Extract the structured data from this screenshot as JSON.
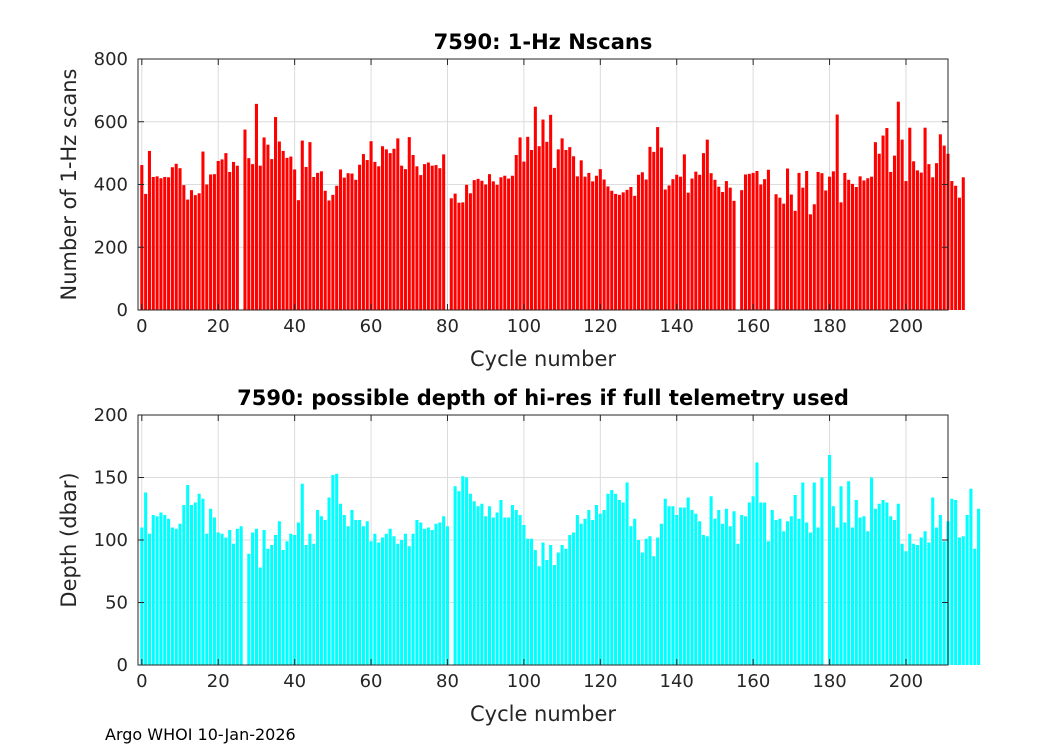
{
  "footer": "Argo WHOI 10-Jan-2026",
  "chart_data": [
    {
      "type": "bar",
      "title": "7590: 1-Hz Nscans",
      "xlabel": "Cycle number",
      "ylabel": "Number of 1-Hz scans",
      "color": "#ff0000",
      "xlim": [
        -1,
        211
      ],
      "ylim": [
        0,
        800
      ],
      "xticks": [
        0,
        20,
        40,
        60,
        80,
        100,
        120,
        140,
        160,
        180,
        200
      ],
      "yticks": [
        0,
        200,
        400,
        600,
        800
      ],
      "grid": true,
      "x_start": 0,
      "values": [
        462,
        370,
        507,
        424,
        426,
        420,
        424,
        423,
        455,
        466,
        452,
        398,
        352,
        382,
        366,
        372,
        505,
        400,
        432,
        433,
        475,
        480,
        500,
        440,
        472,
        460,
        0,
        575,
        484,
        465,
        657,
        460,
        550,
        527,
        481,
        615,
        537,
        507,
        485,
        489,
        448,
        350,
        540,
        456,
        535,
        424,
        437,
        442,
        380,
        349,
        367,
        396,
        448,
        422,
        436,
        435,
        415,
        463,
        497,
        478,
        538,
        472,
        458,
        522,
        512,
        500,
        514,
        547,
        460,
        449,
        551,
        494,
        458,
        430,
        465,
        470,
        460,
        462,
        452,
        496,
        0,
        356,
        371,
        342,
        343,
        399,
        372,
        414,
        418,
        412,
        400,
        433,
        410,
        399,
        423,
        428,
        419,
        428,
        494,
        550,
        473,
        552,
        510,
        648,
        522,
        607,
        536,
        622,
        453,
        512,
        547,
        510,
        519,
        490,
        426,
        477,
        425,
        437,
        410,
        428,
        449,
        416,
        394,
        380,
        370,
        367,
        375,
        383,
        392,
        364,
        431,
        439,
        416,
        520,
        504,
        583,
        518,
        384,
        397,
        417,
        431,
        425,
        496,
        374,
        419,
        441,
        431,
        500,
        543,
        436,
        415,
        393,
        376,
        411,
        390,
        348,
        0,
        382,
        432,
        434,
        437,
        443,
        400,
        417,
        447,
        0,
        369,
        358,
        339,
        451,
        368,
        316,
        437,
        390,
        443,
        305,
        337,
        440,
        436,
        381,
        425,
        442,
        623,
        343,
        437,
        415,
        402,
        392,
        426,
        413,
        420,
        425,
        535,
        498,
        556,
        580,
        440,
        492,
        664,
        543,
        411,
        581,
        474,
        445,
        438,
        581,
        465,
        423,
        468,
        560,
        524,
        498,
        411,
        396,
        358,
        423
      ]
    },
    {
      "type": "bar",
      "title": "7590: possible depth of hi-res if full telemetry used",
      "xlabel": "Cycle number",
      "ylabel": "Depth (dbar)",
      "color": "#00ffff",
      "xlim": [
        -1,
        211
      ],
      "ylim": [
        0,
        200
      ],
      "xticks": [
        0,
        20,
        40,
        60,
        80,
        100,
        120,
        140,
        160,
        180,
        200
      ],
      "yticks": [
        0,
        50,
        100,
        150,
        200
      ],
      "grid": true,
      "x_start": 0,
      "values": [
        110,
        138,
        105,
        120,
        119,
        122,
        120,
        117,
        110,
        109,
        113,
        128,
        144,
        128,
        130,
        137,
        133,
        105,
        125,
        118,
        106,
        105,
        102,
        108,
        97,
        109,
        111,
        0,
        89,
        106,
        109,
        78,
        108,
        93,
        96,
        104,
        115,
        92,
        99,
        105,
        104,
        114,
        145,
        96,
        105,
        97,
        124,
        119,
        116,
        134,
        152,
        153,
        129,
        120,
        111,
        124,
        116,
        116,
        111,
        115,
        99,
        105,
        98,
        102,
        105,
        109,
        103,
        97,
        100,
        105,
        95,
        105,
        116,
        114,
        109,
        110,
        108,
        113,
        114,
        119,
        111,
        0,
        143,
        139,
        151,
        150,
        137,
        131,
        127,
        129,
        119,
        127,
        118,
        122,
        132,
        118,
        118,
        128,
        124,
        120,
        112,
        101,
        101,
        92,
        79,
        98,
        84,
        96,
        80,
        90,
        96,
        93,
        104,
        106,
        120,
        113,
        117,
        124,
        116,
        128,
        121,
        124,
        137,
        140,
        137,
        132,
        130,
        146,
        111,
        117,
        100,
        90,
        101,
        103,
        87,
        102,
        113,
        133,
        127,
        127,
        120,
        126,
        126,
        134,
        124,
        121,
        115,
        104,
        103,
        135,
        117,
        124,
        113,
        125,
        111,
        123,
        97,
        120,
        119,
        130,
        135,
        162,
        130,
        130,
        99,
        124,
        116,
        117,
        107,
        115,
        119,
        136,
        117,
        146,
        114,
        106,
        146,
        110,
        150,
        0,
        168,
        127,
        110,
        143,
        114,
        147,
        110,
        132,
        118,
        119,
        107,
        150,
        125,
        129,
        132,
        130,
        119,
        116,
        129,
        97,
        91,
        105,
        97,
        96,
        102,
        107,
        98,
        134,
        110,
        120,
        99,
        115,
        133,
        132,
        102,
        103,
        120,
        141,
        93,
        125
      ]
    }
  ]
}
